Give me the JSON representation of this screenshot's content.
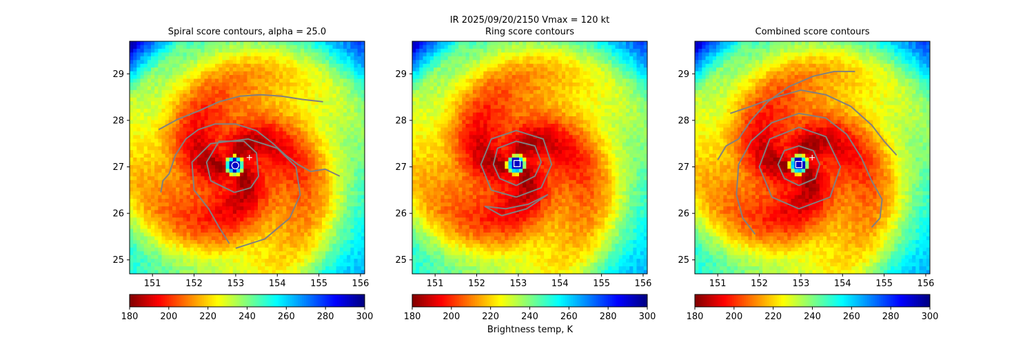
{
  "figure": {
    "suptitle": "IR  2025/09/20/2150    Vmax = 120 kt",
    "colorbar_label": "Brightness temp, K"
  },
  "chart_data": [
    {
      "type": "heatmap",
      "title": "Spiral score contours, alpha = 25.0",
      "xlim": [
        150.45,
        156.1
      ],
      "ylim": [
        24.7,
        29.7
      ],
      "xticks": [
        151,
        152,
        153,
        154,
        155,
        156
      ],
      "yticks": [
        25,
        26,
        27,
        28,
        29
      ],
      "colorbar": {
        "vmin": 180,
        "vmax": 300,
        "ticks": [
          180,
          200,
          220,
          240,
          260,
          280,
          300
        ],
        "colormap": "jet_r"
      },
      "center": {
        "lon": 152.97,
        "lat": 27.03
      },
      "marker": {
        "shape": "circle",
        "lon": 152.99,
        "lat": 27.03
      },
      "cross": {
        "lon": 153.33,
        "lat": 27.2
      },
      "contour_color": "#808080",
      "contours": [
        [
          [
            151.2,
            26.45
          ],
          [
            151.25,
            26.7
          ],
          [
            151.4,
            26.85
          ],
          [
            151.55,
            27.25
          ],
          [
            151.8,
            27.6
          ],
          [
            152.1,
            27.8
          ],
          [
            152.5,
            27.92
          ],
          [
            153.0,
            27.92
          ],
          [
            153.5,
            27.78
          ],
          [
            153.9,
            27.5
          ],
          [
            154.2,
            27.25
          ],
          [
            154.5,
            27.05
          ],
          [
            154.8,
            26.9
          ],
          [
            155.15,
            26.95
          ],
          [
            155.5,
            26.8
          ]
        ],
        [
          [
            151.15,
            27.8
          ],
          [
            151.6,
            28.02
          ],
          [
            152.1,
            28.2
          ],
          [
            152.6,
            28.4
          ],
          [
            153.1,
            28.52
          ],
          [
            153.6,
            28.55
          ],
          [
            154.1,
            28.52
          ],
          [
            154.6,
            28.45
          ],
          [
            155.1,
            28.4
          ]
        ],
        [
          [
            152.97,
            26.45
          ],
          [
            153.36,
            26.55
          ],
          [
            153.55,
            26.8
          ],
          [
            153.5,
            27.3
          ],
          [
            153.2,
            27.55
          ],
          [
            152.6,
            27.55
          ],
          [
            152.3,
            27.1
          ],
          [
            152.4,
            26.7
          ],
          [
            152.97,
            26.45
          ]
        ],
        [
          [
            153.0,
            25.25
          ],
          [
            153.7,
            25.45
          ],
          [
            154.3,
            25.9
          ],
          [
            154.55,
            26.4
          ],
          [
            154.45,
            27.0
          ],
          [
            154.0,
            27.4
          ],
          [
            153.3,
            27.6
          ],
          [
            152.4,
            27.5
          ],
          [
            151.95,
            27.1
          ],
          [
            152.0,
            26.5
          ],
          [
            152.35,
            26.1
          ],
          [
            152.6,
            25.7
          ],
          [
            152.85,
            25.35
          ]
        ]
      ]
    },
    {
      "type": "heatmap",
      "title": "Ring score contours",
      "xlim": [
        150.45,
        156.1
      ],
      "ylim": [
        24.7,
        29.7
      ],
      "xticks": [
        151,
        152,
        153,
        154,
        155,
        156
      ],
      "yticks": [
        25,
        26,
        27,
        28,
        29
      ],
      "colorbar": {
        "vmin": 180,
        "vmax": 300,
        "ticks": [
          180,
          200,
          220,
          240,
          260,
          280,
          300
        ],
        "colormap": "jet_r"
      },
      "center": {
        "lon": 152.95,
        "lat": 27.05
      },
      "marker": {
        "shape": "square",
        "lon": 152.97,
        "lat": 27.07
      },
      "contour_color": "#808080",
      "contours": [
        [
          [
            152.95,
            26.6
          ],
          [
            153.4,
            26.8
          ],
          [
            153.55,
            27.1
          ],
          [
            153.4,
            27.45
          ],
          [
            152.95,
            27.55
          ],
          [
            152.5,
            27.4
          ],
          [
            152.4,
            27.05
          ],
          [
            152.55,
            26.75
          ],
          [
            152.95,
            26.6
          ]
        ],
        [
          [
            152.95,
            26.35
          ],
          [
            153.55,
            26.55
          ],
          [
            153.8,
            27.05
          ],
          [
            153.6,
            27.6
          ],
          [
            152.95,
            27.78
          ],
          [
            152.35,
            27.6
          ],
          [
            152.1,
            27.05
          ],
          [
            152.35,
            26.5
          ],
          [
            152.95,
            26.35
          ]
        ],
        [
          [
            152.6,
            25.95
          ],
          [
            153.2,
            26.1
          ],
          [
            153.7,
            26.4
          ],
          [
            153.25,
            26.2
          ],
          [
            152.7,
            26.1
          ],
          [
            152.2,
            26.15
          ],
          [
            152.6,
            25.95
          ]
        ]
      ]
    },
    {
      "type": "heatmap",
      "title": "Combined score contours",
      "xlim": [
        150.45,
        156.1
      ],
      "ylim": [
        24.7,
        29.7
      ],
      "xticks": [
        151,
        152,
        153,
        154,
        155,
        156
      ],
      "yticks": [
        25,
        26,
        27,
        28,
        29
      ],
      "colorbar": {
        "vmin": 180,
        "vmax": 300,
        "ticks": [
          180,
          200,
          220,
          240,
          260,
          280,
          300
        ],
        "colormap": "jet_r"
      },
      "center": {
        "lon": 152.95,
        "lat": 27.05
      },
      "marker": {
        "shape": "square",
        "lon": 152.95,
        "lat": 27.05
      },
      "cross": {
        "lon": 153.27,
        "lat": 27.2
      },
      "contour_color": "#808080",
      "contours": [
        [
          [
            152.95,
            26.6
          ],
          [
            153.35,
            26.75
          ],
          [
            153.45,
            27.05
          ],
          [
            153.3,
            27.35
          ],
          [
            152.95,
            27.45
          ],
          [
            152.6,
            27.35
          ],
          [
            152.45,
            27.05
          ],
          [
            152.6,
            26.75
          ],
          [
            152.95,
            26.6
          ]
        ],
        [
          [
            152.95,
            26.1
          ],
          [
            153.7,
            26.35
          ],
          [
            153.95,
            27.0
          ],
          [
            153.6,
            27.65
          ],
          [
            152.95,
            27.85
          ],
          [
            152.25,
            27.6
          ],
          [
            152.0,
            27.0
          ],
          [
            152.3,
            26.35
          ],
          [
            152.95,
            26.1
          ]
        ],
        [
          [
            151.9,
            25.55
          ],
          [
            151.6,
            25.9
          ],
          [
            151.45,
            26.4
          ],
          [
            151.5,
            27.05
          ],
          [
            151.8,
            27.55
          ],
          [
            152.3,
            27.95
          ],
          [
            152.95,
            28.15
          ],
          [
            153.6,
            28.05
          ],
          [
            154.1,
            27.7
          ],
          [
            154.45,
            27.2
          ],
          [
            154.7,
            26.7
          ],
          [
            154.95,
            26.3
          ],
          [
            154.9,
            25.9
          ],
          [
            154.7,
            25.7
          ]
        ],
        [
          [
            151.0,
            27.15
          ],
          [
            151.2,
            27.45
          ],
          [
            151.5,
            27.6
          ],
          [
            151.8,
            28.0
          ],
          [
            152.2,
            28.4
          ],
          [
            152.7,
            28.72
          ],
          [
            153.3,
            28.95
          ],
          [
            153.8,
            29.05
          ],
          [
            154.3,
            29.05
          ]
        ],
        [
          [
            151.3,
            28.15
          ],
          [
            151.8,
            28.3
          ],
          [
            152.4,
            28.5
          ],
          [
            153.0,
            28.65
          ],
          [
            153.6,
            28.55
          ],
          [
            154.2,
            28.3
          ],
          [
            154.7,
            27.9
          ],
          [
            155.0,
            27.55
          ],
          [
            155.3,
            27.25
          ]
        ]
      ]
    }
  ]
}
